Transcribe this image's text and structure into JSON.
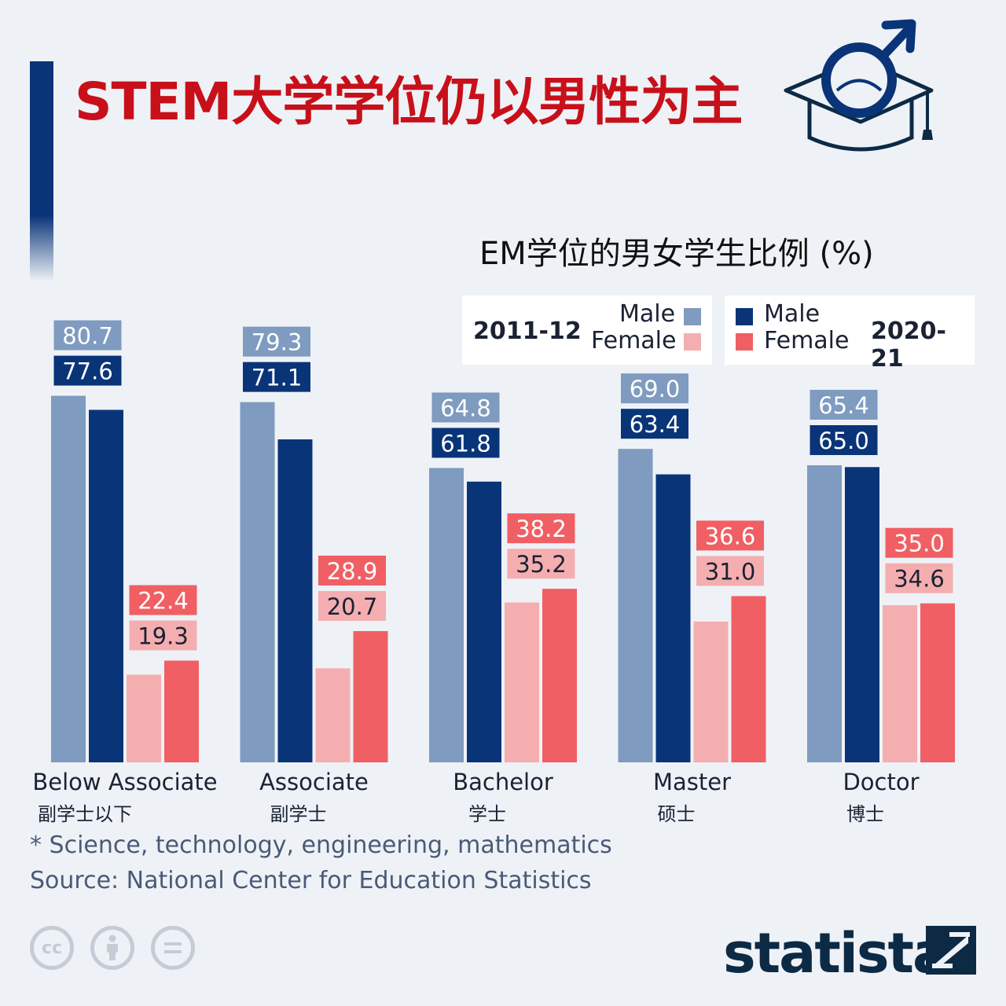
{
  "header": {
    "title": "STEM大学学位仍以男性为主",
    "subtitle": "EM学位的男女学生比例 (%)"
  },
  "legend": {
    "left_year": "2011-12",
    "right_year": "2020-21",
    "male_label": "Male",
    "female_label": "Female"
  },
  "colors": {
    "male_2011": "#7f9bbf",
    "male_2020": "#0a3478",
    "female_2011": "#f5aeb0",
    "female_2020": "#f05f63",
    "title": "#c8101a"
  },
  "chart_data": {
    "type": "bar",
    "categories": [
      "Below Associate",
      "Associate",
      "Bachelor",
      "Master",
      "Doctor"
    ],
    "categories_zh": [
      "副学士以下",
      "副学士",
      "学士",
      "硕士",
      "博士"
    ],
    "series": [
      {
        "name": "Male 2011-12",
        "values": [
          80.7,
          79.3,
          64.8,
          69.0,
          65.4
        ]
      },
      {
        "name": "Male 2020-21",
        "values": [
          77.6,
          71.1,
          61.8,
          63.4,
          65.0
        ]
      },
      {
        "name": "Female 2011-12",
        "values": [
          19.3,
          20.7,
          35.2,
          31.0,
          34.6
        ]
      },
      {
        "name": "Female 2020-21",
        "values": [
          22.4,
          28.9,
          38.2,
          36.6,
          35.0
        ]
      }
    ],
    "ylim": [
      0,
      100
    ]
  },
  "footer": {
    "footnote": "* Science, technology, engineering, mathematics",
    "source": "Source: National Center for Education Statistics",
    "brand": "statista",
    "cc_icons": [
      "cc-icon",
      "attribution-icon",
      "no-derivatives-icon"
    ]
  }
}
